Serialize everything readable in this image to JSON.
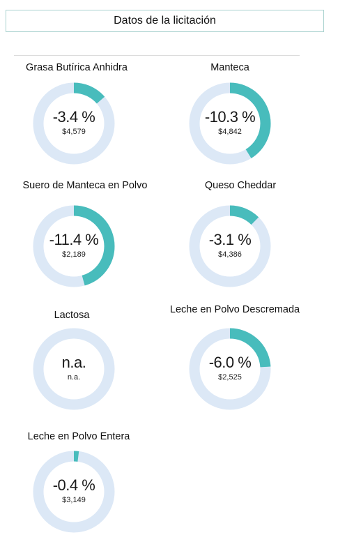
{
  "header": {
    "title": "Datos de la licitación"
  },
  "colors": {
    "track": "#dce8f6",
    "fill": "#48bcbc",
    "border": "#a9d2cf"
  },
  "chart_data": [
    {
      "type": "donut",
      "title": "Grasa Butírica Anhidra",
      "label": "-3.4 %",
      "sub": "$4,579",
      "value": -3.4
    },
    {
      "type": "donut",
      "title": "Manteca",
      "label": "-10.3 %",
      "sub": "$4,842",
      "value": -10.3
    },
    {
      "type": "donut",
      "title": "Suero de Manteca en Polvo",
      "label": "-11.4 %",
      "sub": "$2,189",
      "value": -11.4
    },
    {
      "type": "donut",
      "title": "Queso Cheddar",
      "label": "-3.1 %",
      "sub": "$4,386",
      "value": -3.1
    },
    {
      "type": "donut",
      "title": "Lactosa",
      "label": "n.a.",
      "sub": "n.a.",
      "value": null
    },
    {
      "type": "donut",
      "title": "Leche en Polvo Descremada",
      "label": "-6.0 %",
      "sub": "$2,525",
      "value": -6.0
    },
    {
      "type": "donut",
      "title": "Leche en Polvo Entera",
      "label": "-0.4 %",
      "sub": "$3,149",
      "value": -0.4
    }
  ]
}
